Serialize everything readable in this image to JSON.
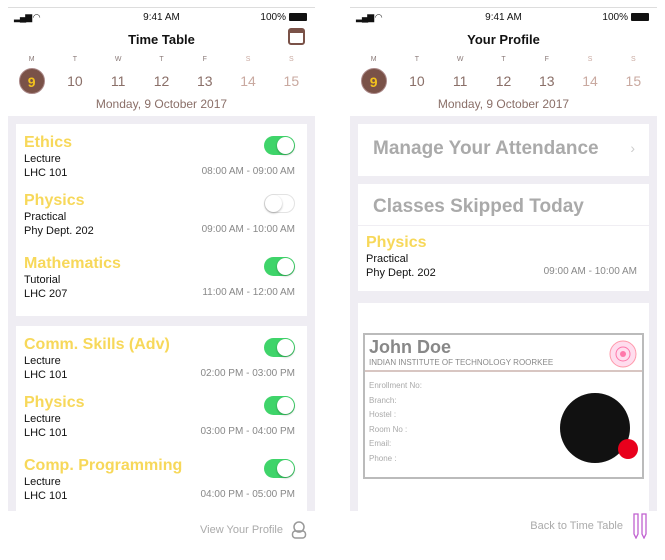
{
  "status": {
    "time": "9:41 AM",
    "battery": "100%"
  },
  "calendar": {
    "days": [
      {
        "l": "M",
        "n": "9"
      },
      {
        "l": "T",
        "n": "10"
      },
      {
        "l": "W",
        "n": "11"
      },
      {
        "l": "T",
        "n": "12"
      },
      {
        "l": "F",
        "n": "13"
      },
      {
        "l": "S",
        "n": "14"
      },
      {
        "l": "S",
        "n": "15"
      }
    ],
    "selected": "9",
    "date": "Monday, 9 October 2017"
  },
  "timetable": {
    "title": "Time Table",
    "groups": [
      [
        {
          "name": "Ethics",
          "type": "Lecture",
          "room": "LHC 101",
          "time": "08:00 AM - 09:00 AM",
          "on": true
        },
        {
          "name": "Physics",
          "type": "Practical",
          "room": "Phy Dept. 202",
          "time": "09:00 AM - 10:00 AM",
          "on": false
        },
        {
          "name": "Mathematics",
          "type": "Tutorial",
          "room": "LHC 207",
          "time": "11:00 AM - 12:00 AM",
          "on": true
        }
      ],
      [
        {
          "name": "Comm. Skills (Adv)",
          "type": "Lecture",
          "room": "LHC 101",
          "time": "02:00 PM - 03:00 PM",
          "on": true
        },
        {
          "name": "Physics",
          "type": "Lecture",
          "room": "LHC 101",
          "time": "03:00 PM - 04:00 PM",
          "on": true
        },
        {
          "name": "Comp. Programming",
          "type": "Lecture",
          "room": "LHC 101",
          "time": "04:00 PM - 05:00 PM",
          "on": true
        }
      ]
    ],
    "footer": "View Your Profile"
  },
  "profile": {
    "title": "Your Profile",
    "manage": "Manage Your Attendance",
    "skipped_header": "Classes Skipped Today",
    "skipped": {
      "name": "Physics",
      "type": "Practical",
      "room": "Phy Dept. 202",
      "time": "09:00 AM - 10:00 AM"
    },
    "id_card": {
      "name": "John Doe",
      "institute": "INDIAN INSTITUTE OF TECHNOLOGY ROORKEE",
      "fields": [
        "Enrollment No:",
        "Branch:",
        "Hostel :",
        "Room No :",
        "Email:",
        "Phone :"
      ]
    },
    "footer": "Back to Time Table"
  },
  "colors": {
    "accent": "#7a5248",
    "subject": "#f7d85a",
    "toggle_on": "#3fd46a"
  }
}
